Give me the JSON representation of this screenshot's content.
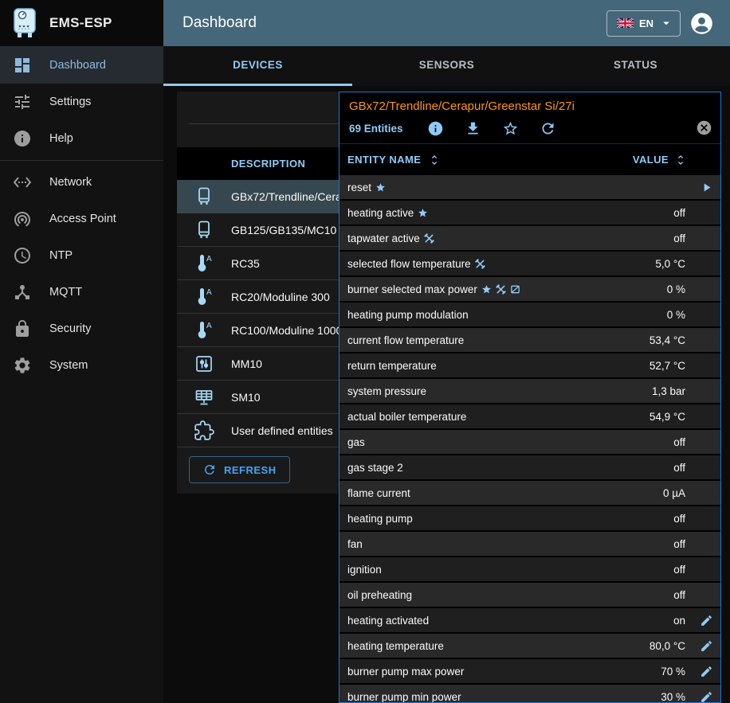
{
  "theme": {
    "appbar_color": "#446879",
    "accent_color": "#90caf9",
    "panel_border_color": "#1976d2",
    "device_title_color": "#ff9800",
    "selected_device_row_color": "#37474f"
  },
  "brand": {
    "app_name": "EMS-ESP",
    "logo_icon": "boiler-logo"
  },
  "header": {
    "title": "Dashboard",
    "language": {
      "label": "EN",
      "flag_icon": "uk-flag"
    },
    "account_icon": "account-circle"
  },
  "sidebar": {
    "items": [
      {
        "label": "Dashboard",
        "icon": "dashboard",
        "selected": true
      },
      {
        "label": "Settings",
        "icon": "tune"
      },
      {
        "label": "Help",
        "icon": "info",
        "divider_after": true
      },
      {
        "label": "Network",
        "icon": "ethernet"
      },
      {
        "label": "Access Point",
        "icon": "wifi-tethering"
      },
      {
        "label": "NTP",
        "icon": "clock"
      },
      {
        "label": "MQTT",
        "icon": "device-hub"
      },
      {
        "label": "Security",
        "icon": "lock"
      },
      {
        "label": "System",
        "icon": "gear"
      }
    ]
  },
  "tabs": [
    {
      "label": "DEVICES",
      "active": true
    },
    {
      "label": "SENSORS",
      "active": false
    },
    {
      "label": "STATUS",
      "active": false
    }
  ],
  "devices": {
    "column_header": "DESCRIPTION",
    "rows": [
      {
        "icon": "boiler",
        "label": "GBx72/Trendline/Cerapur/Greenstar Si/27i",
        "selected": true
      },
      {
        "icon": "boiler",
        "label": "GB125/GB135/MC10"
      },
      {
        "icon": "thermostat",
        "label": "RC35"
      },
      {
        "icon": "thermostat",
        "label": "RC20/Moduline 300"
      },
      {
        "icon": "thermostat",
        "label": "RC100/Moduline 1000"
      },
      {
        "icon": "mixer",
        "label": "MM10"
      },
      {
        "icon": "solar",
        "label": "SM10"
      },
      {
        "icon": "puzzle",
        "label": "User defined entities"
      }
    ],
    "refresh_label": "REFRESH"
  },
  "panel": {
    "title": "GBx72/Trendline/Cerapur/Greenstar Si/27i",
    "subtitle": "69 Entities",
    "toolbar_icons": [
      "info",
      "download",
      "star-outline",
      "refresh"
    ],
    "columns": [
      {
        "label": "ENTITY NAME"
      },
      {
        "label": "VALUE"
      }
    ],
    "rows": [
      {
        "name": "reset",
        "badges": [
          "favorite"
        ],
        "value": "",
        "action": "play"
      },
      {
        "name": "heating active",
        "badges": [
          "favorite"
        ],
        "value": "off"
      },
      {
        "name": "tapwater active",
        "badges": [
          "construction"
        ],
        "value": "off"
      },
      {
        "name": "selected flow temperature",
        "badges": [
          "construction"
        ],
        "value": "5,0 °C"
      },
      {
        "name": "burner selected max power",
        "badges": [
          "favorite",
          "construction",
          "no-web"
        ],
        "value": "0 %"
      },
      {
        "name": "heating pump modulation",
        "badges": [],
        "value": "0 %"
      },
      {
        "name": "current flow temperature",
        "badges": [],
        "value": "53,4 °C"
      },
      {
        "name": "return temperature",
        "badges": [],
        "value": "52,7 °C"
      },
      {
        "name": "system pressure",
        "badges": [],
        "value": "1,3 bar"
      },
      {
        "name": "actual boiler temperature",
        "badges": [],
        "value": "54,9 °C"
      },
      {
        "name": "gas",
        "badges": [],
        "value": "off"
      },
      {
        "name": "gas stage 2",
        "badges": [],
        "value": "off"
      },
      {
        "name": "flame current",
        "badges": [],
        "value": "0 µA"
      },
      {
        "name": "heating pump",
        "badges": [],
        "value": "off"
      },
      {
        "name": "fan",
        "badges": [],
        "value": "off"
      },
      {
        "name": "ignition",
        "badges": [],
        "value": "off"
      },
      {
        "name": "oil preheating",
        "badges": [],
        "value": "off"
      },
      {
        "name": "heating activated",
        "badges": [],
        "value": "on",
        "action": "edit"
      },
      {
        "name": "heating temperature",
        "badges": [],
        "value": "80,0 °C",
        "action": "edit"
      },
      {
        "name": "burner pump max power",
        "badges": [],
        "value": "70 %",
        "action": "edit"
      },
      {
        "name": "burner pump min power",
        "badges": [],
        "value": "30 %",
        "action": "edit"
      }
    ]
  }
}
